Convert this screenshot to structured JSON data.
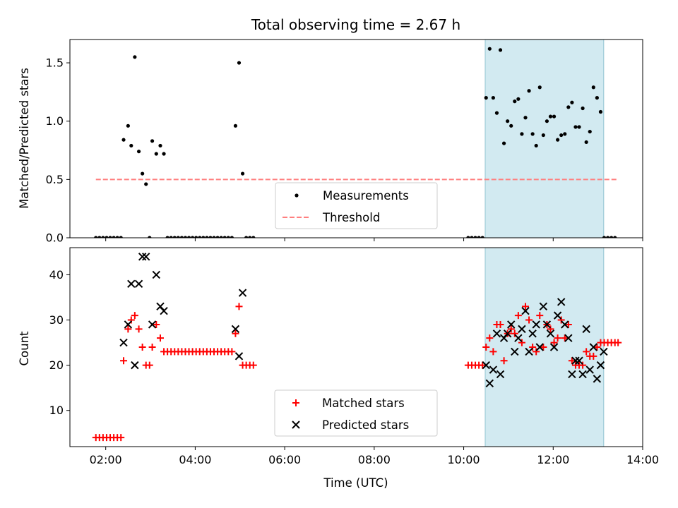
{
  "chart_data": [
    {
      "type": "scatter",
      "title": "Total observing time = 2.67 h",
      "xlabel": "",
      "ylabel": "Matched/Predicted stars",
      "xlim": [
        1.2,
        14.0
      ],
      "ylim": [
        0,
        1.7
      ],
      "yticks": [
        "0.0",
        "0.5",
        "1.0",
        "1.5"
      ],
      "grid": false,
      "legend_position": "lower-center",
      "shaded_region": {
        "x_start": 10.48,
        "x_end": 13.13,
        "color": "#add8e6"
      },
      "series": [
        {
          "name": "Measurements",
          "marker": "dot",
          "color": "#000000",
          "points": [
            [
              1.78,
              0
            ],
            [
              1.86,
              0
            ],
            [
              1.94,
              0
            ],
            [
              2.02,
              0
            ],
            [
              2.1,
              0
            ],
            [
              2.18,
              0
            ],
            [
              2.26,
              0
            ],
            [
              2.34,
              0
            ],
            [
              2.4,
              0.84
            ],
            [
              2.5,
              0.96
            ],
            [
              2.57,
              0.79
            ],
            [
              2.65,
              1.55
            ],
            [
              2.74,
              0.74
            ],
            [
              2.82,
              0.55
            ],
            [
              2.9,
              0.46
            ],
            [
              2.98,
              0
            ],
            [
              3.04,
              0.83
            ],
            [
              3.13,
              0.72
            ],
            [
              3.22,
              0.79
            ],
            [
              3.3,
              0.72
            ],
            [
              3.38,
              0
            ],
            [
              3.46,
              0
            ],
            [
              3.54,
              0
            ],
            [
              3.62,
              0
            ],
            [
              3.7,
              0
            ],
            [
              3.78,
              0
            ],
            [
              3.86,
              0
            ],
            [
              3.94,
              0
            ],
            [
              4.02,
              0
            ],
            [
              4.1,
              0
            ],
            [
              4.18,
              0
            ],
            [
              4.26,
              0
            ],
            [
              4.34,
              0
            ],
            [
              4.42,
              0
            ],
            [
              4.5,
              0
            ],
            [
              4.58,
              0
            ],
            [
              4.66,
              0
            ],
            [
              4.74,
              0
            ],
            [
              4.82,
              0
            ],
            [
              4.9,
              0.96
            ],
            [
              4.98,
              1.5
            ],
            [
              5.06,
              0.55
            ],
            [
              5.14,
              0
            ],
            [
              5.22,
              0
            ],
            [
              5.3,
              0
            ],
            [
              10.1,
              0
            ],
            [
              10.18,
              0
            ],
            [
              10.26,
              0
            ],
            [
              10.34,
              0
            ],
            [
              10.42,
              0
            ],
            [
              10.5,
              1.2
            ],
            [
              10.58,
              1.62
            ],
            [
              10.66,
              1.2
            ],
            [
              10.74,
              1.07
            ],
            [
              10.82,
              1.61
            ],
            [
              10.9,
              0.81
            ],
            [
              10.98,
              1.0
            ],
            [
              11.06,
              0.96
            ],
            [
              11.14,
              1.17
            ],
            [
              11.22,
              1.19
            ],
            [
              11.3,
              0.89
            ],
            [
              11.38,
              1.03
            ],
            [
              11.46,
              1.26
            ],
            [
              11.54,
              0.89
            ],
            [
              11.62,
              0.79
            ],
            [
              11.7,
              1.29
            ],
            [
              11.78,
              0.88
            ],
            [
              11.86,
              1.0
            ],
            [
              11.94,
              1.04
            ],
            [
              12.02,
              1.04
            ],
            [
              12.1,
              0.84
            ],
            [
              12.18,
              0.88
            ],
            [
              12.26,
              0.89
            ],
            [
              12.34,
              1.12
            ],
            [
              12.42,
              1.16
            ],
            [
              12.5,
              0.95
            ],
            [
              12.58,
              0.95
            ],
            [
              12.66,
              1.11
            ],
            [
              12.74,
              0.82
            ],
            [
              12.82,
              0.91
            ],
            [
              12.9,
              1.29
            ],
            [
              12.98,
              1.2
            ],
            [
              13.06,
              1.08
            ],
            [
              13.14,
              0
            ],
            [
              13.22,
              0
            ],
            [
              13.3,
              0
            ],
            [
              13.38,
              0
            ]
          ]
        },
        {
          "name": "Threshold",
          "marker": "dashed-line",
          "color": "#ff7f7f",
          "points": [
            [
              1.78,
              0.5
            ],
            [
              13.45,
              0.5
            ]
          ]
        }
      ]
    },
    {
      "type": "scatter",
      "title": "",
      "xlabel": "Time (UTC)",
      "ylabel": "Count",
      "xlim": [
        1.2,
        14.0
      ],
      "ylim": [
        2,
        46
      ],
      "xticks": [
        "02:00",
        "04:00",
        "06:00",
        "08:00",
        "10:00",
        "12:00",
        "14:00"
      ],
      "yticks": [
        "10",
        "20",
        "30",
        "40"
      ],
      "grid": false,
      "legend_position": "lower-center",
      "shaded_region": {
        "x_start": 10.48,
        "x_end": 13.13,
        "color": "#add8e6"
      },
      "series": [
        {
          "name": "Matched stars",
          "marker": "plus",
          "color": "#ff0000",
          "points": [
            [
              1.78,
              4
            ],
            [
              1.86,
              4
            ],
            [
              1.94,
              4
            ],
            [
              2.02,
              4
            ],
            [
              2.1,
              4
            ],
            [
              2.18,
              4
            ],
            [
              2.26,
              4
            ],
            [
              2.34,
              4
            ],
            [
              2.4,
              21
            ],
            [
              2.5,
              28
            ],
            [
              2.57,
              30
            ],
            [
              2.65,
              31
            ],
            [
              2.74,
              28
            ],
            [
              2.82,
              24
            ],
            [
              2.9,
              20
            ],
            [
              2.98,
              20
            ],
            [
              3.04,
              24
            ],
            [
              3.13,
              29
            ],
            [
              3.22,
              26
            ],
            [
              3.3,
              23
            ],
            [
              3.38,
              23
            ],
            [
              3.46,
              23
            ],
            [
              3.54,
              23
            ],
            [
              3.62,
              23
            ],
            [
              3.7,
              23
            ],
            [
              3.78,
              23
            ],
            [
              3.86,
              23
            ],
            [
              3.94,
              23
            ],
            [
              4.02,
              23
            ],
            [
              4.1,
              23
            ],
            [
              4.18,
              23
            ],
            [
              4.26,
              23
            ],
            [
              4.34,
              23
            ],
            [
              4.42,
              23
            ],
            [
              4.5,
              23
            ],
            [
              4.58,
              23
            ],
            [
              4.66,
              23
            ],
            [
              4.74,
              23
            ],
            [
              4.82,
              23
            ],
            [
              4.9,
              27
            ],
            [
              4.98,
              33
            ],
            [
              5.06,
              20
            ],
            [
              5.14,
              20
            ],
            [
              5.22,
              20
            ],
            [
              5.3,
              20
            ],
            [
              10.1,
              20
            ],
            [
              10.18,
              20
            ],
            [
              10.26,
              20
            ],
            [
              10.34,
              20
            ],
            [
              10.42,
              20
            ],
            [
              10.5,
              24
            ],
            [
              10.58,
              26
            ],
            [
              10.66,
              23
            ],
            [
              10.74,
              29
            ],
            [
              10.82,
              29
            ],
            [
              10.9,
              21
            ],
            [
              10.98,
              27
            ],
            [
              11.06,
              28
            ],
            [
              11.14,
              27
            ],
            [
              11.22,
              31
            ],
            [
              11.3,
              25
            ],
            [
              11.38,
              33
            ],
            [
              11.46,
              30
            ],
            [
              11.54,
              24
            ],
            [
              11.62,
              23
            ],
            [
              11.7,
              31
            ],
            [
              11.78,
              24
            ],
            [
              11.86,
              29
            ],
            [
              11.94,
              28
            ],
            [
              12.02,
              25
            ],
            [
              12.1,
              26
            ],
            [
              12.18,
              30
            ],
            [
              12.26,
              26
            ],
            [
              12.34,
              29
            ],
            [
              12.42,
              21
            ],
            [
              12.5,
              20
            ],
            [
              12.58,
              20
            ],
            [
              12.66,
              20
            ],
            [
              12.74,
              23
            ],
            [
              12.82,
              22
            ],
            [
              12.9,
              22
            ],
            [
              12.98,
              24
            ],
            [
              13.06,
              25
            ],
            [
              13.14,
              25
            ],
            [
              13.22,
              25
            ],
            [
              13.3,
              25
            ],
            [
              13.38,
              25
            ],
            [
              13.45,
              25
            ]
          ]
        },
        {
          "name": "Predicted stars",
          "marker": "x",
          "color": "#000000",
          "points": [
            [
              2.4,
              25
            ],
            [
              2.5,
              29
            ],
            [
              2.57,
              38
            ],
            [
              2.65,
              20
            ],
            [
              2.74,
              38
            ],
            [
              2.82,
              44
            ],
            [
              2.9,
              44
            ],
            [
              3.04,
              29
            ],
            [
              3.13,
              40
            ],
            [
              3.22,
              33
            ],
            [
              3.3,
              32
            ],
            [
              4.9,
              28
            ],
            [
              4.98,
              22
            ],
            [
              5.06,
              36
            ],
            [
              10.5,
              20
            ],
            [
              10.58,
              16
            ],
            [
              10.66,
              19
            ],
            [
              10.74,
              27
            ],
            [
              10.82,
              18
            ],
            [
              10.9,
              26
            ],
            [
              10.98,
              27
            ],
            [
              11.06,
              29
            ],
            [
              11.14,
              23
            ],
            [
              11.22,
              26
            ],
            [
              11.3,
              28
            ],
            [
              11.38,
              32
            ],
            [
              11.46,
              23
            ],
            [
              11.54,
              27
            ],
            [
              11.62,
              29
            ],
            [
              11.7,
              24
            ],
            [
              11.78,
              33
            ],
            [
              11.86,
              29
            ],
            [
              11.94,
              27
            ],
            [
              12.02,
              24
            ],
            [
              12.1,
              31
            ],
            [
              12.18,
              34
            ],
            [
              12.26,
              29
            ],
            [
              12.34,
              26
            ],
            [
              12.42,
              18
            ],
            [
              12.5,
              21
            ],
            [
              12.58,
              21
            ],
            [
              12.66,
              18
            ],
            [
              12.74,
              28
            ],
            [
              12.82,
              19
            ],
            [
              12.9,
              24
            ],
            [
              12.98,
              17
            ],
            [
              13.06,
              20
            ],
            [
              13.13,
              23
            ]
          ]
        }
      ]
    }
  ]
}
